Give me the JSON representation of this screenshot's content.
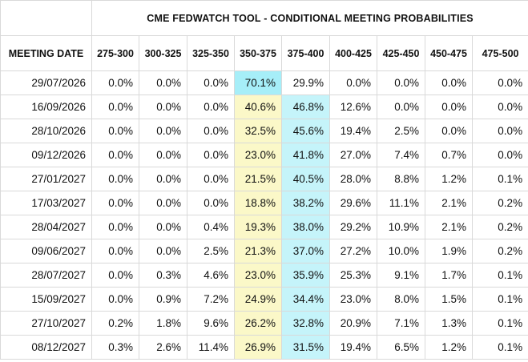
{
  "title": "CME FEDWATCH TOOL - CONDITIONAL MEETING PROBABILITIES",
  "date_header": "MEETING DATE",
  "ranges": [
    "275-300",
    "300-325",
    "325-350",
    "350-375",
    "375-400",
    "400-425",
    "425-450",
    "450-475",
    "475-500"
  ],
  "rows": [
    {
      "date": "29/07/2026",
      "values": [
        "0.0%",
        "0.0%",
        "0.0%",
        "70.1%",
        "29.9%",
        "0.0%",
        "0.0%",
        "0.0%",
        "0.0%"
      ],
      "highlight_cols": [
        3
      ],
      "highlight_style": "top"
    },
    {
      "date": "16/09/2026",
      "values": [
        "0.0%",
        "0.0%",
        "0.0%",
        "40.6%",
        "46.8%",
        "12.6%",
        "0.0%",
        "0.0%",
        "0.0%"
      ]
    },
    {
      "date": "28/10/2026",
      "values": [
        "0.0%",
        "0.0%",
        "0.0%",
        "32.5%",
        "45.6%",
        "19.4%",
        "2.5%",
        "0.0%",
        "0.0%"
      ]
    },
    {
      "date": "09/12/2026",
      "values": [
        "0.0%",
        "0.0%",
        "0.0%",
        "23.0%",
        "41.8%",
        "27.0%",
        "7.4%",
        "0.7%",
        "0.0%"
      ]
    },
    {
      "date": "27/01/2027",
      "values": [
        "0.0%",
        "0.0%",
        "0.0%",
        "21.5%",
        "40.5%",
        "28.0%",
        "8.8%",
        "1.2%",
        "0.1%"
      ]
    },
    {
      "date": "17/03/2027",
      "values": [
        "0.0%",
        "0.0%",
        "0.0%",
        "18.8%",
        "38.2%",
        "29.6%",
        "11.1%",
        "2.1%",
        "0.2%"
      ]
    },
    {
      "date": "28/04/2027",
      "values": [
        "0.0%",
        "0.0%",
        "0.4%",
        "19.3%",
        "38.0%",
        "29.2%",
        "10.9%",
        "2.1%",
        "0.2%"
      ]
    },
    {
      "date": "09/06/2027",
      "values": [
        "0.0%",
        "0.0%",
        "2.5%",
        "21.3%",
        "37.0%",
        "27.2%",
        "10.0%",
        "1.9%",
        "0.2%"
      ]
    },
    {
      "date": "28/07/2027",
      "values": [
        "0.0%",
        "0.3%",
        "4.6%",
        "23.0%",
        "35.9%",
        "25.3%",
        "9.1%",
        "1.7%",
        "0.1%"
      ]
    },
    {
      "date": "15/09/2027",
      "values": [
        "0.0%",
        "0.9%",
        "7.2%",
        "24.9%",
        "34.4%",
        "23.0%",
        "8.0%",
        "1.5%",
        "0.1%"
      ]
    },
    {
      "date": "27/10/2027",
      "values": [
        "0.2%",
        "1.8%",
        "9.6%",
        "26.2%",
        "32.8%",
        "20.9%",
        "7.1%",
        "1.3%",
        "0.1%"
      ]
    },
    {
      "date": "08/12/2027",
      "values": [
        "0.3%",
        "2.6%",
        "11.4%",
        "26.9%",
        "31.5%",
        "19.4%",
        "6.5%",
        "1.2%",
        "0.1%"
      ]
    }
  ],
  "colors": {
    "highlight_yellow": "#fbf8c8",
    "highlight_cyan": "#c5f4fa",
    "highlight_top_cyan": "#a6eef8",
    "grid_line": "#d9d9d9"
  }
}
